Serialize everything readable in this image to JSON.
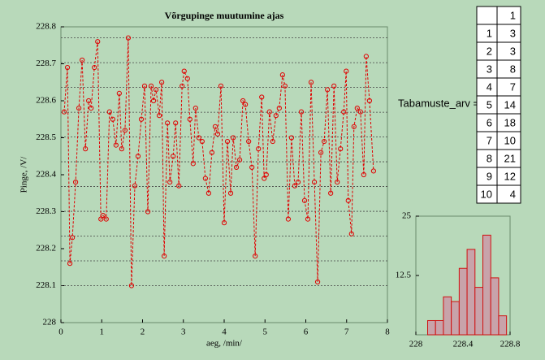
{
  "chart_data": [
    {
      "type": "line",
      "title": "Võrgupinge muutumine ajas",
      "xlabel": "aeg, /min/",
      "ylabel": "Pinge, /V/",
      "color": "#e00000",
      "xlim": [
        0,
        8
      ],
      "xticks": [
        0,
        1,
        2,
        3,
        4,
        5,
        6,
        7,
        8
      ],
      "ylim": [
        228,
        228.8
      ],
      "yticks": [
        228,
        228.1,
        228.2,
        228.3,
        228.4,
        228.5,
        228.6,
        228.7,
        228.8
      ],
      "x": [
        0.08,
        0.16,
        0.22,
        0.28,
        0.36,
        0.44,
        0.52,
        0.6,
        0.68,
        0.74,
        0.82,
        0.9,
        0.98,
        1.03,
        1.11,
        1.19,
        1.27,
        1.35,
        1.43,
        1.49,
        1.57,
        1.65,
        1.73,
        1.81,
        1.89,
        1.97,
        2.05,
        2.13,
        2.21,
        2.27,
        2.33,
        2.41,
        2.47,
        2.53,
        2.61,
        2.67,
        2.75,
        2.81,
        2.89,
        2.97,
        3.02,
        3.1,
        3.16,
        3.24,
        3.3,
        3.38,
        3.46,
        3.54,
        3.62,
        3.7,
        3.78,
        3.84,
        3.92,
        4.0,
        4.08,
        4.16,
        4.22,
        4.3,
        4.38,
        4.46,
        4.52,
        4.6,
        4.68,
        4.76,
        4.84,
        4.92,
        4.98,
        5.03,
        5.11,
        5.19,
        5.27,
        5.35,
        5.43,
        5.49,
        5.57,
        5.65,
        5.73,
        5.81,
        5.89,
        5.97,
        6.05,
        6.13,
        6.21,
        6.29,
        6.37,
        6.45,
        6.53,
        6.61,
        6.69,
        6.77,
        6.85,
        6.93,
        6.99,
        7.04,
        7.12,
        7.18,
        7.26,
        7.34,
        7.42,
        7.48,
        7.56,
        7.66
      ],
      "values": [
        228.57,
        228.69,
        228.16,
        228.23,
        228.38,
        228.58,
        228.71,
        228.47,
        228.6,
        228.58,
        228.69,
        228.76,
        228.28,
        228.29,
        228.28,
        228.57,
        228.55,
        228.48,
        228.62,
        228.47,
        228.52,
        228.77,
        228.1,
        228.37,
        228.45,
        228.55,
        228.64,
        228.3,
        228.64,
        228.6,
        228.63,
        228.56,
        228.65,
        228.18,
        228.54,
        228.38,
        228.45,
        228.54,
        228.37,
        228.64,
        228.68,
        228.66,
        228.55,
        228.43,
        228.58,
        228.5,
        228.49,
        228.39,
        228.35,
        228.46,
        228.53,
        228.51,
        228.64,
        228.27,
        228.49,
        228.35,
        228.5,
        228.42,
        228.44,
        228.6,
        228.59,
        228.49,
        228.42,
        228.18,
        228.47,
        228.61,
        228.39,
        228.4,
        228.57,
        228.49,
        228.56,
        228.58,
        228.67,
        228.64,
        228.28,
        228.5,
        228.37,
        228.38,
        228.57,
        228.33,
        228.28,
        228.65,
        228.38,
        228.11,
        228.46,
        228.49,
        228.63,
        228.35,
        228.64,
        228.38,
        228.47,
        228.57,
        228.68,
        228.33,
        228.24,
        228.53,
        228.58,
        228.57,
        228.4,
        228.72,
        228.6,
        228.41
      ]
    },
    {
      "type": "histogram",
      "color": "#c8a3aa",
      "edgecolor": "#d01010",
      "bins": [
        228.1,
        228.167,
        228.234,
        228.301,
        228.368,
        228.435,
        228.502,
        228.569,
        228.636,
        228.703,
        228.77
      ],
      "values": [
        3,
        3,
        8,
        7,
        14,
        18,
        10,
        21,
        12,
        4
      ],
      "xlim": [
        228,
        228.8
      ],
      "xticks": [
        228,
        228.4,
        228.8
      ],
      "ylim": [
        0,
        25
      ],
      "yticks": [
        12.5,
        25
      ]
    }
  ],
  "table": {
    "label": "Tabamuste_arv =",
    "header": [
      "1"
    ],
    "rows": [
      [
        "1",
        "3"
      ],
      [
        "2",
        "3"
      ],
      [
        "3",
        "8"
      ],
      [
        "4",
        "7"
      ],
      [
        "5",
        "14"
      ],
      [
        "6",
        "18"
      ],
      [
        "7",
        "10"
      ],
      [
        "8",
        "21"
      ],
      [
        "9",
        "12"
      ],
      [
        "10",
        "4"
      ]
    ]
  }
}
